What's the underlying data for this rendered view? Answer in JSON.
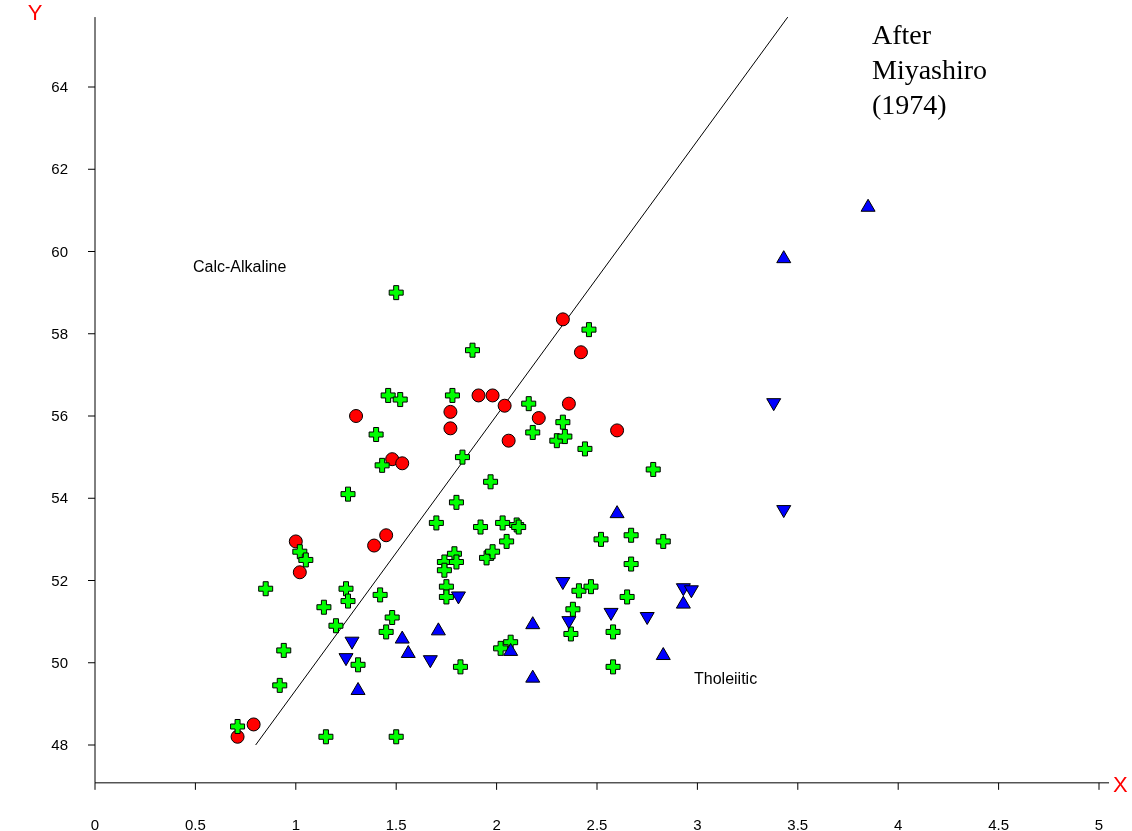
{
  "chart_data": {
    "type": "scatter",
    "xlabel": "X",
    "ylabel": "Y",
    "xlim": [
      0,
      5.05
    ],
    "ylim": [
      47.08,
      65.7
    ],
    "xticks": [
      0,
      0.5,
      1,
      1.5,
      2,
      2.5,
      3,
      3.5,
      4,
      4.5,
      5
    ],
    "yticks": [
      48,
      50,
      52,
      54,
      56,
      58,
      60,
      62,
      64
    ],
    "grid": false,
    "annotations": [
      "Calc-Alkaline",
      "Tholeiitic",
      "After Miyashiro (1974)"
    ],
    "series": [
      {
        "type": "line",
        "color": "#000000",
        "marker": "none",
        "line_style": "solid",
        "x": [
          0.8,
          3.45
        ],
        "values": [
          48,
          65.7
        ]
      },
      {
        "color": "#ff0000",
        "marker": "circle",
        "x": [
          0.71,
          0.79,
          1.0,
          1.02,
          1.3,
          1.39,
          1.45,
          1.48,
          1.53,
          1.77,
          1.77,
          1.91,
          1.98,
          2.04,
          2.06,
          2.21,
          2.33,
          2.42,
          2.36,
          2.6
        ],
        "values": [
          48.2,
          48.5,
          52.95,
          52.2,
          56.0,
          52.85,
          53.1,
          54.95,
          54.85,
          56.1,
          55.7,
          56.5,
          56.5,
          56.25,
          55.4,
          55.95,
          58.35,
          57.55,
          56.3,
          55.65
        ]
      },
      {
        "color": "#00ff00",
        "marker": "cross",
        "x": [
          0.71,
          0.85,
          0.92,
          0.94,
          1.02,
          1.05,
          1.14,
          1.2,
          1.25,
          1.26,
          1.26,
          1.15,
          1.31,
          1.4,
          1.43,
          1.46,
          1.52,
          1.5,
          1.42,
          1.48,
          1.45,
          1.5,
          1.88,
          1.78,
          1.83,
          1.97,
          1.8,
          1.7,
          1.92,
          1.79,
          1.74,
          1.8,
          1.74,
          1.95,
          1.98,
          1.75,
          1.75,
          1.82,
          2.46,
          2.16,
          2.33,
          2.18,
          2.3,
          2.34,
          2.44,
          2.78,
          2.03,
          2.1,
          2.11,
          2.05,
          2.52,
          2.67,
          2.83,
          2.67,
          2.41,
          2.47,
          2.65,
          2.38,
          2.37,
          2.58,
          2.58,
          2.07,
          2.02
        ],
        "values": [
          48.45,
          51.8,
          49.45,
          50.3,
          52.7,
          52.5,
          51.35,
          50.9,
          51.8,
          51.5,
          54.1,
          48.2,
          49.95,
          55.55,
          54.8,
          56.5,
          56.4,
          59.0,
          51.65,
          51.1,
          50.75,
          48.2,
          57.6,
          56.5,
          55.0,
          54.4,
          53.9,
          53.4,
          53.3,
          52.65,
          52.45,
          52.45,
          52.25,
          52.55,
          52.7,
          51.85,
          51.6,
          49.9,
          58.1,
          56.3,
          55.85,
          55.6,
          55.4,
          55.5,
          55.2,
          54.7,
          53.4,
          53.35,
          53.3,
          52.95,
          53.0,
          53.1,
          52.95,
          52.4,
          51.75,
          51.85,
          51.6,
          51.3,
          50.7,
          50.75,
          49.9,
          50.5,
          50.35
        ]
      },
      {
        "color": "#0000ff",
        "marker": "triangle",
        "x": [
          1.53,
          1.56,
          1.71,
          1.31,
          2.6,
          2.18,
          2.07,
          2.18,
          2.83,
          2.93,
          3.85,
          3.43
        ],
        "values": [
          50.6,
          50.25,
          50.8,
          49.35,
          53.65,
          50.95,
          50.3,
          49.65,
          50.2,
          51.45,
          61.1,
          59.85
        ]
      },
      {
        "color": "#0000ff",
        "marker": "triangle-down",
        "x": [
          1.28,
          1.25,
          1.67,
          1.81,
          2.33,
          2.36,
          2.57,
          2.75,
          3.38,
          3.43,
          2.93,
          2.97
        ],
        "values": [
          50.5,
          50.1,
          50.05,
          51.6,
          51.95,
          51.0,
          51.2,
          51.1,
          56.3,
          53.7,
          51.8,
          51.75
        ]
      }
    ]
  }
}
